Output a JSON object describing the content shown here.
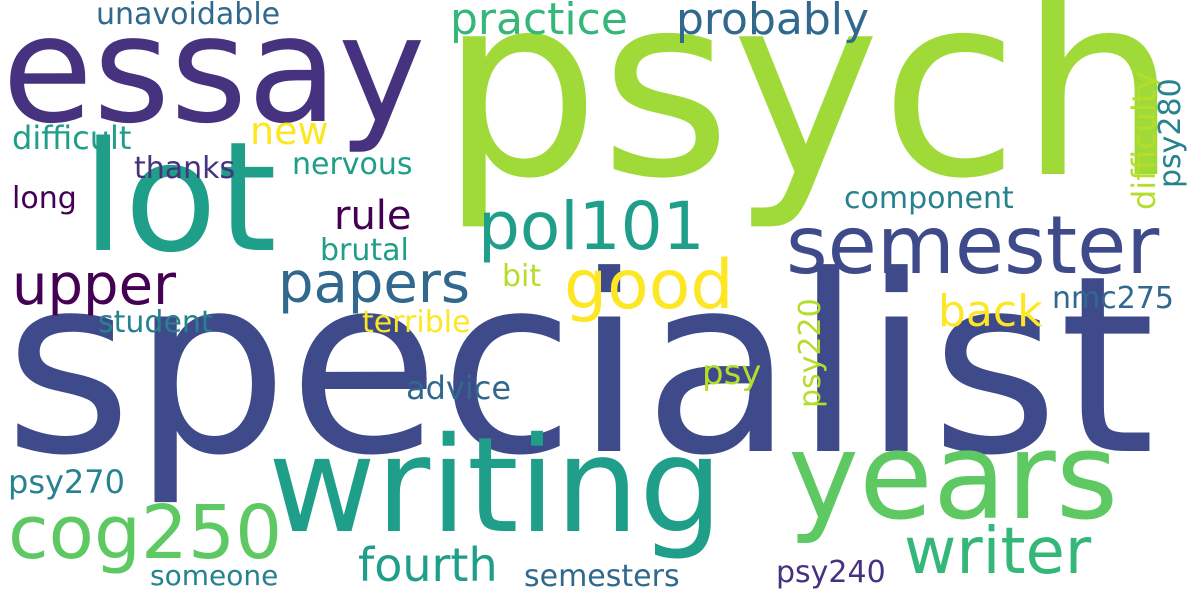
{
  "words": {
    "psych": "psych",
    "specialist": "specialist",
    "essay": "essay",
    "lot": "lot",
    "writing": "writing",
    "years": "years",
    "semester": "semester",
    "cog250": "cog250",
    "writer": "writer",
    "pol101": "pol101",
    "papers": "papers",
    "good": "good",
    "upper": "upper",
    "fourth": "fourth",
    "practice": "practice",
    "probably": "probably",
    "rule": "rule",
    "back": "back",
    "new": "new",
    "unavoidable": "unavoidable",
    "difficult": "difficult",
    "thanks": "thanks",
    "nervous": "nervous",
    "long": "long",
    "component": "component",
    "brutal": "brutal",
    "bit": "bit",
    "nmc275": "nmc275",
    "student": "student",
    "terrible": "terrible",
    "psy": "psy",
    "advice": "advice",
    "psy270": "psy270",
    "someone": "someone",
    "semesters": "semesters",
    "psy240": "psy240",
    "psy220": "psy220",
    "difficulty": "difficulty",
    "psy280": "psy280"
  }
}
